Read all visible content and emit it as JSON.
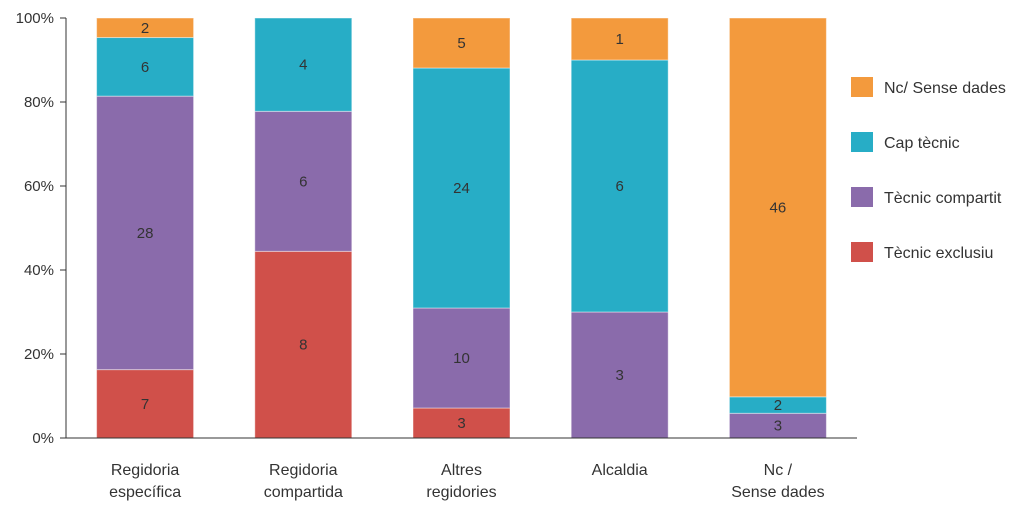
{
  "chart_data": {
    "type": "bar",
    "stacked": true,
    "normalized_percent": true,
    "categories": [
      [
        "Regidoria",
        "específica"
      ],
      [
        "Regidoria",
        "compartida"
      ],
      [
        "Altres",
        "regidories"
      ],
      [
        "Alcaldia"
      ],
      [
        "Nc /",
        "Sense dades"
      ]
    ],
    "series": [
      {
        "name": "Tècnic exclusiu",
        "color": "#d0504a",
        "values": [
          7,
          8,
          3,
          0,
          0
        ]
      },
      {
        "name": "Tècnic compartit",
        "color": "#8a6bab",
        "values": [
          28,
          6,
          10,
          3,
          3
        ]
      },
      {
        "name": "Cap tècnic",
        "color": "#27adc6",
        "values": [
          6,
          4,
          24,
          6,
          2
        ]
      },
      {
        "name": "Nc/ Sense dades",
        "color": "#f39a3d",
        "values": [
          2,
          0,
          5,
          1,
          46
        ]
      }
    ],
    "legend_order": [
      "Nc/ Sense dades",
      "Cap tècnic",
      "Tècnic compartit",
      "Tècnic exclusiu"
    ],
    "legend_position": "right",
    "y_ticks": [
      "0%",
      "20%",
      "40%",
      "60%",
      "80%",
      "100%"
    ],
    "ylim": [
      0,
      100
    ],
    "grid": false,
    "title": "",
    "xlabel": "",
    "ylabel": ""
  }
}
